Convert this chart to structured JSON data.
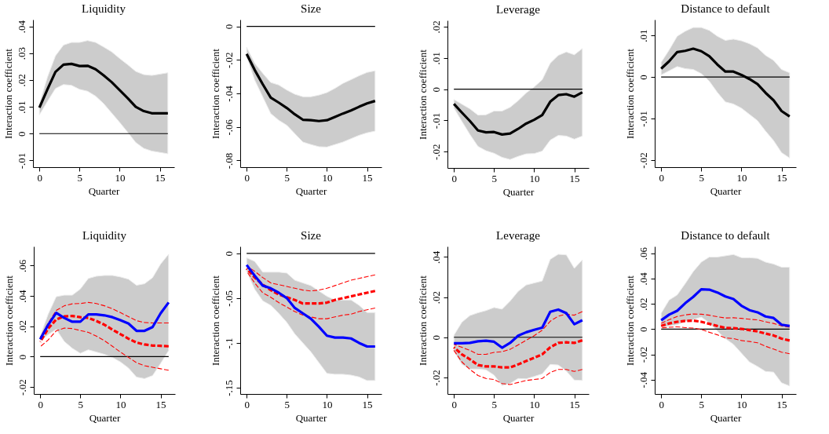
{
  "chart_data": [
    {
      "type": "line",
      "title": "Liquidity",
      "xlabel": "Quarter",
      "ylabel": "Interaction coefficient",
      "grid": false,
      "x": [
        0,
        1,
        2,
        3,
        4,
        5,
        6,
        7,
        8,
        9,
        10,
        11,
        12,
        13,
        14,
        15,
        16
      ],
      "xlim": [
        -0.8,
        16.8
      ],
      "xticks": [
        0,
        5,
        10,
        15
      ],
      "ylim": [
        -0.0125,
        0.0425
      ],
      "yticks": [
        {
          "value": -0.01,
          "label": "-.01"
        },
        {
          "value": 0,
          "label": "0"
        },
        {
          "value": 0.01,
          "label": ".01"
        },
        {
          "value": 0.02,
          "label": ".02"
        },
        {
          "value": 0.03,
          "label": ".03"
        },
        {
          "value": 0.04,
          "label": ".04"
        }
      ],
      "ref_lines": [
        {
          "axis": "y",
          "value": 0,
          "color": "#000000"
        }
      ],
      "series": [
        {
          "color": "#000000",
          "line_style": "solid",
          "values": [
            0.0097,
            0.0165,
            0.023,
            0.0257,
            0.026,
            0.0252,
            0.0253,
            0.024,
            0.0217,
            0.0192,
            0.0162,
            0.0132,
            0.01,
            0.0084,
            0.0076,
            0.0076,
            0.0076
          ],
          "lower": [
            0.007,
            0.012,
            0.0168,
            0.0183,
            0.018,
            0.0165,
            0.0158,
            0.014,
            0.0112,
            0.0077,
            0.0042,
            0.0005,
            -0.0033,
            -0.0055,
            -0.0065,
            -0.007,
            -0.0075
          ],
          "upper": [
            0.011,
            0.021,
            0.029,
            0.033,
            0.034,
            0.034,
            0.0347,
            0.034,
            0.0323,
            0.0305,
            0.028,
            0.0257,
            0.0232,
            0.022,
            0.0217,
            0.0222,
            0.0227
          ]
        }
      ]
    },
    {
      "type": "line",
      "title": "Size",
      "xlabel": "Quarter",
      "ylabel": "Interaction coefficient",
      "grid": false,
      "x": [
        0,
        1,
        2,
        3,
        4,
        5,
        6,
        7,
        8,
        9,
        10,
        11,
        12,
        13,
        14,
        15,
        16
      ],
      "xlim": [
        -0.8,
        16.8
      ],
      "xticks": [
        0,
        5,
        10,
        15
      ],
      "ylim": [
        -0.084,
        0.004
      ],
      "yticks": [
        {
          "value": -0.08,
          "label": "-.08"
        },
        {
          "value": -0.06,
          "label": "-.06"
        },
        {
          "value": -0.04,
          "label": "-.04"
        },
        {
          "value": -0.02,
          "label": "-.02"
        },
        {
          "value": 0,
          "label": "0"
        }
      ],
      "ref_lines": [
        {
          "axis": "y",
          "value": 0,
          "color": "#000000"
        }
      ],
      "series": [
        {
          "color": "#000000",
          "line_style": "solid",
          "values": [
            -0.0165,
            -0.026,
            -0.0345,
            -0.0425,
            -0.0455,
            -0.0487,
            -0.0525,
            -0.0557,
            -0.056,
            -0.0565,
            -0.056,
            -0.054,
            -0.052,
            -0.0502,
            -0.048,
            -0.046,
            -0.0445
          ],
          "lower": [
            -0.018,
            -0.032,
            -0.042,
            -0.052,
            -0.056,
            -0.059,
            -0.064,
            -0.069,
            -0.0705,
            -0.0718,
            -0.072,
            -0.0705,
            -0.069,
            -0.067,
            -0.065,
            -0.0635,
            -0.0625
          ],
          "upper": [
            -0.0125,
            -0.022,
            -0.028,
            -0.0335,
            -0.035,
            -0.038,
            -0.0405,
            -0.042,
            -0.042,
            -0.041,
            -0.0395,
            -0.037,
            -0.034,
            -0.0318,
            -0.0295,
            -0.0275,
            -0.0265
          ]
        }
      ]
    },
    {
      "type": "line",
      "title": "Leverage",
      "xlabel": "Quarter",
      "ylabel": "Interaction coefficient",
      "grid": false,
      "x": [
        0,
        1,
        2,
        3,
        4,
        5,
        6,
        7,
        8,
        9,
        10,
        11,
        12,
        13,
        14,
        15,
        16
      ],
      "xlim": [
        -0.8,
        16.8
      ],
      "xticks": [
        0,
        5,
        10,
        15
      ],
      "ylim": [
        -0.0252,
        0.022
      ],
      "yticks": [
        {
          "value": -0.02,
          "label": "-.02"
        },
        {
          "value": -0.01,
          "label": "-.01"
        },
        {
          "value": 0,
          "label": "0"
        },
        {
          "value": 0.01,
          "label": ".01"
        },
        {
          "value": 0.02,
          "label": ".02"
        }
      ],
      "ref_lines": [
        {
          "axis": "y",
          "value": 0,
          "color": "#000000"
        }
      ],
      "series": [
        {
          "color": "#000000",
          "line_style": "solid",
          "values": [
            -0.0047,
            -0.0075,
            -0.0102,
            -0.0132,
            -0.0138,
            -0.0137,
            -0.0145,
            -0.0142,
            -0.0127,
            -0.011,
            -0.0098,
            -0.0083,
            -0.004,
            -0.0019,
            -0.0016,
            -0.0024,
            -0.001
          ],
          "lower": [
            -0.006,
            -0.0103,
            -0.0145,
            -0.0183,
            -0.0197,
            -0.0205,
            -0.0218,
            -0.0225,
            -0.0215,
            -0.0207,
            -0.0206,
            -0.0198,
            -0.0163,
            -0.0148,
            -0.015,
            -0.016,
            -0.015
          ],
          "upper": [
            -0.0033,
            -0.0048,
            -0.0063,
            -0.0083,
            -0.0082,
            -0.007,
            -0.007,
            -0.0058,
            -0.0037,
            -0.0012,
            0.0007,
            0.003,
            0.0083,
            0.0108,
            0.0119,
            0.011,
            0.013
          ]
        }
      ]
    },
    {
      "type": "line",
      "title": "Distance to default",
      "xlabel": "Quarter",
      "ylabel": "Interaction coefficient",
      "grid": false,
      "x": [
        0,
        1,
        2,
        3,
        4,
        5,
        6,
        7,
        8,
        9,
        10,
        11,
        12,
        13,
        14,
        15,
        16
      ],
      "xlim": [
        -0.8,
        16.8
      ],
      "xticks": [
        0,
        5,
        10,
        15
      ],
      "ylim": [
        -0.0217,
        0.0138
      ],
      "yticks": [
        {
          "value": -0.02,
          "label": "-.02"
        },
        {
          "value": -0.01,
          "label": "-.01"
        },
        {
          "value": 0,
          "label": "0"
        },
        {
          "value": 0.01,
          "label": ".01"
        }
      ],
      "ref_lines": [
        {
          "axis": "y",
          "value": 0,
          "color": "#000000"
        }
      ],
      "series": [
        {
          "color": "#000000",
          "line_style": "solid",
          "values": [
            0.002,
            0.0038,
            0.006,
            0.0063,
            0.0068,
            0.0062,
            0.005,
            0.003,
            0.0013,
            0.0013,
            0.0005,
            -0.0005,
            -0.0017,
            -0.0038,
            -0.0056,
            -0.0082,
            -0.0095
          ],
          "lower": [
            0.0005,
            0.0015,
            0.0025,
            0.002,
            0.0018,
            0.0008,
            -0.001,
            -0.0037,
            -0.006,
            -0.0065,
            -0.0075,
            -0.009,
            -0.0105,
            -0.013,
            -0.0153,
            -0.0182,
            -0.0195
          ],
          "upper": [
            0.0035,
            0.0065,
            0.0098,
            0.011,
            0.0119,
            0.0119,
            0.0112,
            0.0098,
            0.0088,
            0.0091,
            0.0087,
            0.008,
            0.007,
            0.0052,
            0.004,
            0.0018,
            0.001
          ]
        }
      ]
    },
    {
      "type": "line",
      "title": "Liquidity",
      "xlabel": "Quarter",
      "ylabel": "Interaction coefficient",
      "grid": false,
      "x": [
        0,
        1,
        2,
        3,
        4,
        5,
        6,
        7,
        8,
        9,
        10,
        11,
        12,
        13,
        14,
        15,
        16
      ],
      "xlim": [
        -0.8,
        16.8
      ],
      "xticks": [
        0,
        5,
        10,
        15
      ],
      "ylim": [
        -0.0246,
        0.0726
      ],
      "yticks": [
        {
          "value": -0.02,
          "label": "-.02"
        },
        {
          "value": 0,
          "label": "0"
        },
        {
          "value": 0.02,
          "label": ".02"
        },
        {
          "value": 0.04,
          "label": ".04"
        },
        {
          "value": 0.06,
          "label": ".06"
        }
      ],
      "ref_lines": [
        {
          "axis": "y",
          "value": 0,
          "color": "#000000"
        }
      ],
      "series": [
        {
          "color": "#0000ff",
          "line_style": "solid",
          "values": [
            0.0115,
            0.021,
            0.0288,
            0.0255,
            0.023,
            0.023,
            0.0278,
            0.0278,
            0.0272,
            0.026,
            0.024,
            0.0218,
            0.017,
            0.017,
            0.0195,
            0.0285,
            0.0357
          ],
          "lower": [
            0.01,
            0.0145,
            0.018,
            0.01,
            0.0055,
            0.0022,
            0.0045,
            0.003,
            0.0015,
            -0.0005,
            -0.0035,
            -0.0075,
            -0.0135,
            -0.0145,
            -0.0125,
            -0.0045,
            0.004
          ],
          "upper": [
            0.0135,
            0.028,
            0.0395,
            0.0405,
            0.0405,
            0.0445,
            0.0515,
            0.053,
            0.0535,
            0.0535,
            0.0525,
            0.051,
            0.047,
            0.048,
            0.052,
            0.061,
            0.0675
          ]
        },
        {
          "color": "#ff0000",
          "line_style": "dashed",
          "values": [
            0.0097,
            0.0185,
            0.0245,
            0.0265,
            0.0268,
            0.026,
            0.0255,
            0.0235,
            0.021,
            0.0178,
            0.0148,
            0.0118,
            0.0093,
            0.008,
            0.0073,
            0.0071,
            0.0068
          ]
        },
        {
          "color": "#ff0000",
          "line_style": "dashed",
          "values": [
            0.0125,
            0.022,
            0.0305,
            0.0335,
            0.0348,
            0.035,
            0.0357,
            0.035,
            0.0335,
            0.0315,
            0.029,
            0.0263,
            0.0237,
            0.0225,
            0.0222,
            0.0222,
            0.0222
          ]
        },
        {
          "color": "#ff0000",
          "line_style": "dashed",
          "values": [
            0.0065,
            0.011,
            0.017,
            0.0188,
            0.0185,
            0.0172,
            0.016,
            0.0135,
            0.0105,
            0.0068,
            0.003,
            -0.0005,
            -0.004,
            -0.006,
            -0.007,
            -0.008,
            -0.009
          ]
        }
      ]
    },
    {
      "type": "line",
      "title": "Size",
      "xlabel": "Quarter",
      "ylabel": "Interaction coefficient",
      "grid": false,
      "x": [
        0,
        1,
        2,
        3,
        4,
        5,
        6,
        7,
        8,
        9,
        10,
        11,
        12,
        13,
        14,
        15,
        16
      ],
      "xlim": [
        -0.8,
        16.8
      ],
      "xticks": [
        0,
        5,
        10,
        15
      ],
      "ylim": [
        -0.157,
        0.0077
      ],
      "yticks": [
        {
          "value": -0.15,
          "label": "-.15"
        },
        {
          "value": -0.1,
          "label": "-.1"
        },
        {
          "value": -0.05,
          "label": "-.05"
        },
        {
          "value": 0,
          "label": "0"
        }
      ],
      "ref_lines": [
        {
          "axis": "y",
          "value": 0,
          "color": "#000000"
        }
      ],
      "series": [
        {
          "color": "#0000ff",
          "line_style": "solid",
          "values": [
            -0.013,
            -0.025,
            -0.036,
            -0.039,
            -0.044,
            -0.05,
            -0.061,
            -0.067,
            -0.073,
            -0.082,
            -0.092,
            -0.094,
            -0.094,
            -0.095,
            -0.1,
            -0.104,
            -0.104
          ],
          "lower": [
            -0.02,
            -0.04,
            -0.053,
            -0.058,
            -0.067,
            -0.077,
            -0.09,
            -0.1,
            -0.11,
            -0.122,
            -0.134,
            -0.135,
            -0.135,
            -0.136,
            -0.138,
            -0.142,
            -0.142
          ],
          "upper": [
            -0.005,
            -0.009,
            -0.021,
            -0.021,
            -0.021,
            -0.022,
            -0.03,
            -0.033,
            -0.036,
            -0.042,
            -0.048,
            -0.052,
            -0.052,
            -0.052,
            -0.058,
            -0.066,
            -0.066
          ]
        },
        {
          "color": "#ff0000",
          "line_style": "dashed",
          "values": [
            -0.017,
            -0.027,
            -0.035,
            -0.041,
            -0.046,
            -0.049,
            -0.052,
            -0.056,
            -0.056,
            -0.056,
            -0.055,
            -0.052,
            -0.05,
            -0.048,
            -0.046,
            -0.044,
            -0.042
          ]
        },
        {
          "color": "#ff0000",
          "line_style": "dashed",
          "values": [
            -0.014,
            -0.02,
            -0.027,
            -0.033,
            -0.035,
            -0.037,
            -0.039,
            -0.041,
            -0.042,
            -0.041,
            -0.039,
            -0.036,
            -0.033,
            -0.03,
            -0.028,
            -0.026,
            -0.024
          ]
        },
        {
          "color": "#ff0000",
          "line_style": "dashed",
          "values": [
            -0.02,
            -0.033,
            -0.044,
            -0.049,
            -0.055,
            -0.06,
            -0.065,
            -0.069,
            -0.071,
            -0.073,
            -0.073,
            -0.071,
            -0.069,
            -0.068,
            -0.065,
            -0.063,
            -0.061
          ]
        }
      ]
    },
    {
      "type": "line",
      "title": "Leverage",
      "xlabel": "Quarter",
      "ylabel": "Interaction coefficient",
      "grid": false,
      "x": [
        0,
        1,
        2,
        3,
        4,
        5,
        6,
        7,
        8,
        9,
        10,
        11,
        12,
        13,
        14,
        15,
        16
      ],
      "xlim": [
        -0.8,
        16.8
      ],
      "xticks": [
        0,
        5,
        10,
        15
      ],
      "ylim": [
        -0.0282,
        0.0452
      ],
      "yticks": [
        {
          "value": -0.02,
          "label": "-.02"
        },
        {
          "value": 0,
          "label": "0"
        },
        {
          "value": 0.02,
          "label": ".02"
        },
        {
          "value": 0.04,
          "label": ".04"
        }
      ],
      "ref_lines": [
        {
          "axis": "y",
          "value": 0,
          "color": "#000000"
        }
      ],
      "series": [
        {
          "color": "#0000ff",
          "line_style": "solid",
          "values": [
            -0.003,
            -0.003,
            -0.0028,
            -0.002,
            -0.0017,
            -0.0022,
            -0.0052,
            -0.0028,
            0.0008,
            0.0025,
            0.0037,
            0.0048,
            0.0127,
            0.0138,
            0.012,
            0.0065,
            0.0085
          ],
          "lower": [
            -0.0068,
            -0.0135,
            -0.0158,
            -0.0158,
            -0.0162,
            -0.0188,
            -0.024,
            -0.023,
            -0.0205,
            -0.0207,
            -0.0195,
            -0.0182,
            -0.0135,
            -0.0138,
            -0.0168,
            -0.0213,
            -0.0215
          ],
          "upper": [
            0.001,
            0.0075,
            0.0108,
            0.0122,
            0.0133,
            0.0148,
            0.014,
            0.018,
            0.0228,
            0.026,
            0.027,
            0.028,
            0.0388,
            0.0413,
            0.041,
            0.0343,
            0.0385
          ]
        },
        {
          "color": "#ff0000",
          "line_style": "dashed",
          "values": [
            -0.005,
            -0.0085,
            -0.011,
            -0.0138,
            -0.0145,
            -0.0145,
            -0.015,
            -0.015,
            -0.0135,
            -0.0118,
            -0.0102,
            -0.0085,
            -0.005,
            -0.0028,
            -0.0025,
            -0.0028,
            -0.0015
          ]
        },
        {
          "color": "#ff0000",
          "line_style": "dashed",
          "values": [
            -0.0035,
            -0.005,
            -0.0065,
            -0.0085,
            -0.0085,
            -0.0075,
            -0.0072,
            -0.006,
            -0.0038,
            -0.0015,
            0.0008,
            0.0035,
            0.008,
            0.0105,
            0.0115,
            0.011,
            0.0128
          ]
        },
        {
          "color": "#ff0000",
          "line_style": "dashed",
          "values": [
            -0.0065,
            -0.0123,
            -0.016,
            -0.019,
            -0.0205,
            -0.021,
            -0.023,
            -0.0235,
            -0.0225,
            -0.0215,
            -0.021,
            -0.0205,
            -0.0175,
            -0.016,
            -0.016,
            -0.017,
            -0.016
          ]
        }
      ]
    },
    {
      "type": "line",
      "title": "Distance to default",
      "xlabel": "Quarter",
      "ylabel": "Interaction coefficient",
      "grid": false,
      "x": [
        0,
        1,
        2,
        3,
        4,
        5,
        6,
        7,
        8,
        9,
        10,
        11,
        12,
        13,
        14,
        15,
        16
      ],
      "xlim": [
        -0.8,
        16.8
      ],
      "xticks": [
        0,
        5,
        10,
        15
      ],
      "ylim": [
        -0.0513,
        0.0654
      ],
      "yticks": [
        {
          "value": -0.04,
          "label": "-.04"
        },
        {
          "value": -0.02,
          "label": "-.02"
        },
        {
          "value": 0,
          "label": "0"
        },
        {
          "value": 0.02,
          "label": ".02"
        },
        {
          "value": 0.04,
          "label": ".04"
        },
        {
          "value": 0.06,
          "label": ".06"
        }
      ],
      "ref_lines": [
        {
          "axis": "y",
          "value": 0,
          "color": "#000000"
        }
      ],
      "series": [
        {
          "color": "#0000ff",
          "line_style": "solid",
          "values": [
            0.007,
            0.0115,
            0.0145,
            0.0205,
            0.0255,
            0.0315,
            0.0312,
            0.029,
            0.0258,
            0.0238,
            0.0185,
            0.015,
            0.0133,
            0.01,
            0.0088,
            0.0035,
            0.0025
          ],
          "lower": [
            0.0015,
            0.0025,
            0.0035,
            0.006,
            0.0075,
            0.0095,
            0.005,
            -0.0015,
            -0.0075,
            -0.012,
            -0.019,
            -0.026,
            -0.0295,
            -0.0335,
            -0.034,
            -0.0425,
            -0.045
          ],
          "upper": [
            0.0125,
            0.023,
            0.027,
            0.036,
            0.0455,
            0.053,
            0.057,
            0.057,
            0.058,
            0.059,
            0.0565,
            0.0565,
            0.056,
            0.053,
            0.0515,
            0.049,
            0.049
          ]
        },
        {
          "color": "#ff0000",
          "line_style": "dashed",
          "values": [
            0.0025,
            0.0045,
            0.0058,
            0.0065,
            0.0067,
            0.0058,
            0.0042,
            0.0025,
            0.001,
            0.0008,
            0.0002,
            -0.0008,
            -0.0018,
            -0.0035,
            -0.005,
            -0.0075,
            -0.009
          ]
        },
        {
          "color": "#ff0000",
          "line_style": "dashed",
          "values": [
            0.0045,
            0.0075,
            0.01,
            0.0112,
            0.012,
            0.0118,
            0.011,
            0.0098,
            0.0088,
            0.009,
            0.0085,
            0.0078,
            0.0073,
            0.0058,
            0.0045,
            0.0025,
            0.0015
          ]
        },
        {
          "color": "#ff0000",
          "line_style": "dashed",
          "values": [
            0.001,
            0.0015,
            0.0018,
            0.0012,
            0.0008,
            -0.0002,
            -0.0025,
            -0.0045,
            -0.007,
            -0.0075,
            -0.009,
            -0.0098,
            -0.0108,
            -0.0135,
            -0.0158,
            -0.0182,
            -0.0195
          ]
        }
      ]
    }
  ]
}
